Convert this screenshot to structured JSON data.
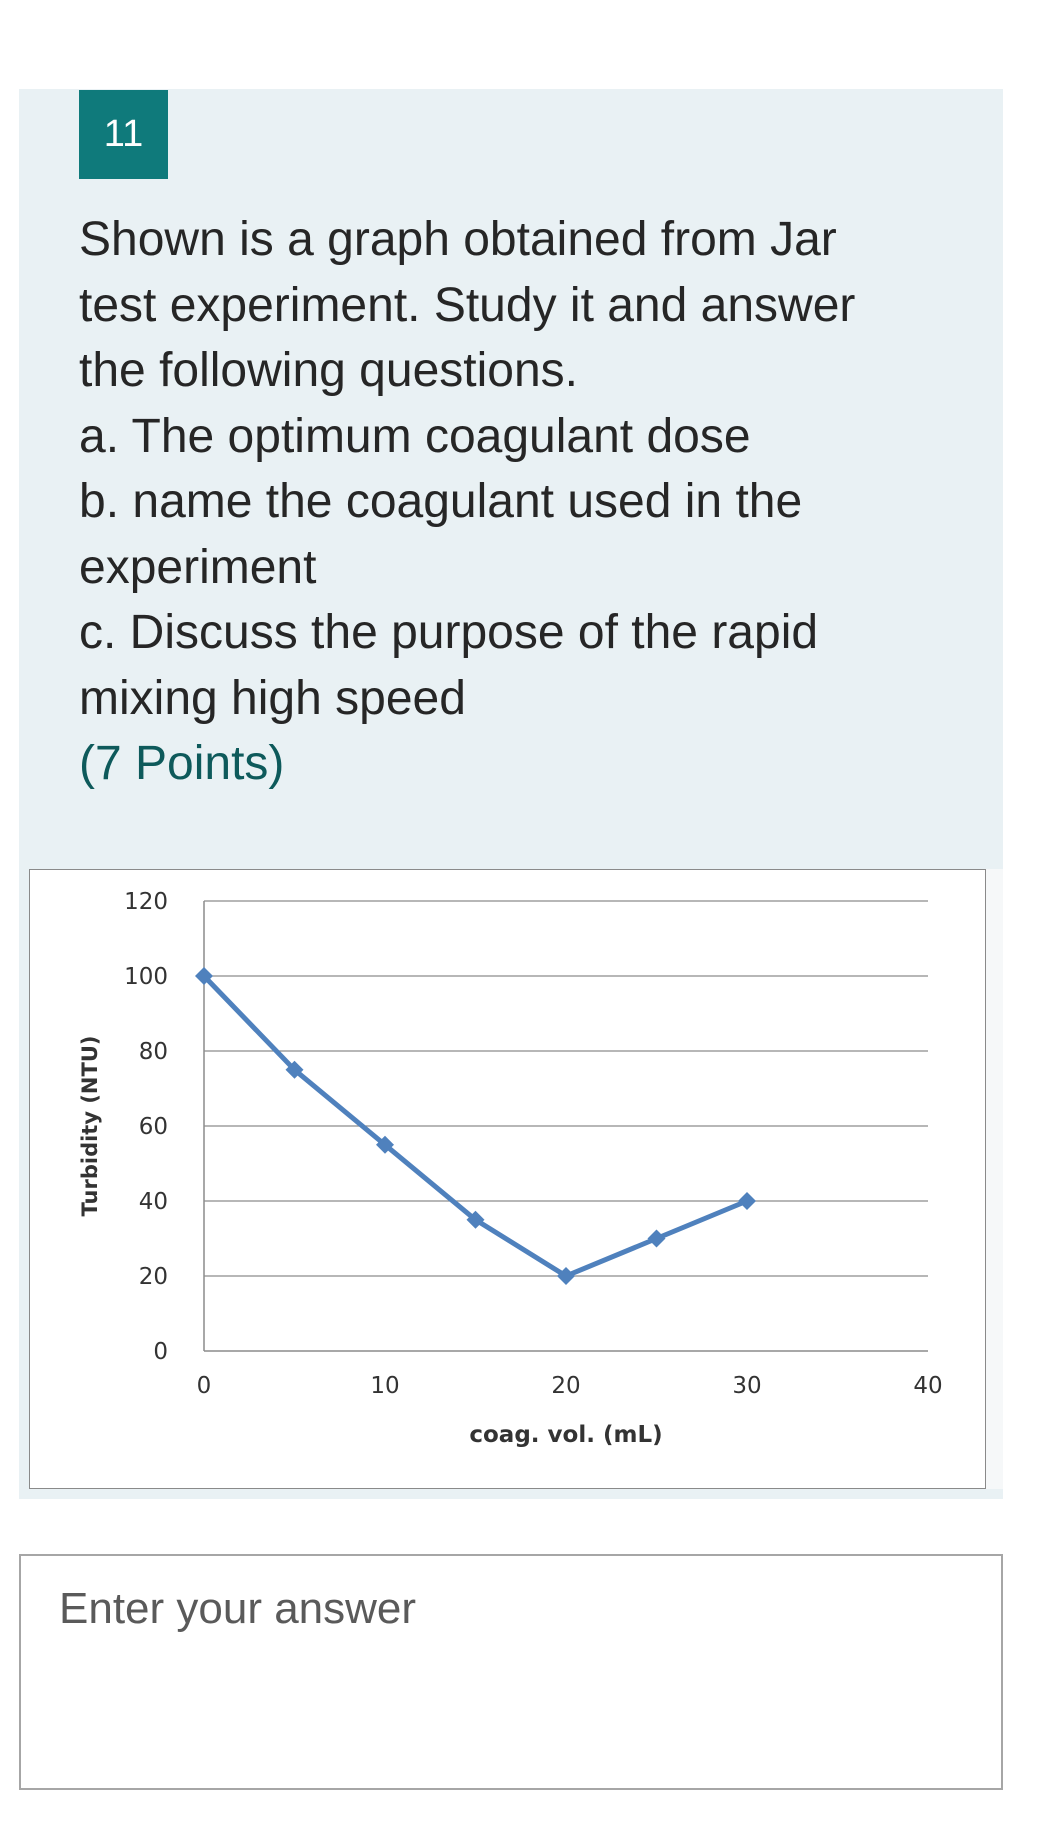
{
  "question": {
    "number": "11",
    "text_lines": [
      "Shown is a graph obtained from Jar",
      "test experiment. Study it and answer",
      "the following questions.",
      "a. The optimum coagulant dose",
      "b. name the coagulant used in the",
      "experiment",
      "c. Discuss the purpose of the rapid",
      "mixing high speed"
    ],
    "points": "(7 Points)",
    "accent_color": "#0f7a7b",
    "card_color": "#e9f1f4"
  },
  "chart_data": {
    "type": "line",
    "title": "",
    "xlabel": "coag. vol. (mL)",
    "ylabel": "Turbidity (NTU)",
    "xlim": [
      0,
      40
    ],
    "ylim": [
      0,
      120
    ],
    "x_ticks": [
      "0",
      "10",
      "20",
      "30",
      "40"
    ],
    "y_ticks": [
      "0",
      "20",
      "40",
      "60",
      "80",
      "100",
      "120"
    ],
    "grid": "horizontal",
    "legend": "none",
    "series": [
      {
        "color": "#4f81bd",
        "marker": "diamond",
        "x": [
          0,
          5,
          10,
          15,
          20,
          25,
          30
        ],
        "y": [
          100,
          75,
          55,
          35,
          20,
          30,
          40
        ]
      }
    ]
  },
  "answer": {
    "placeholder": "Enter your answer",
    "value": ""
  }
}
